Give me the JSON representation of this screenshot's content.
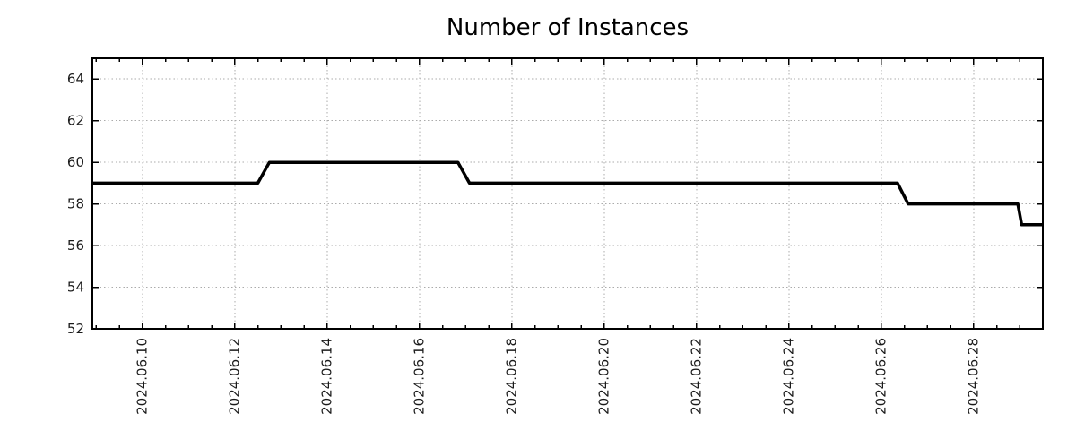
{
  "figure": {
    "title": "Number of Instances"
  },
  "chart_data": {
    "type": "line",
    "subtype": "step",
    "title": "Number of Instances",
    "xlabel": "",
    "ylabel": "",
    "legend": "none",
    "grid": "dotted-major",
    "x_axis": {
      "range": [
        "2024-06-08 22:00",
        "2024-06-29 12:00"
      ],
      "major_ticks": [
        "2024-06-10",
        "2024-06-12",
        "2024-06-14",
        "2024-06-16",
        "2024-06-18",
        "2024-06-20",
        "2024-06-22",
        "2024-06-24",
        "2024-06-26",
        "2024-06-28"
      ],
      "tick_labels": [
        "2024.06.10",
        "2024.06.12",
        "2024.06.14",
        "2024.06.16",
        "2024.06.18",
        "2024.06.20",
        "2024.06.22",
        "2024.06.24",
        "2024.06.26",
        "2024.06.28"
      ],
      "minor_tick_interval_days": 0.5,
      "tick_label_rotation_deg": 90
    },
    "y_axis": {
      "range": [
        52,
        65
      ],
      "ticks": [
        52,
        54,
        56,
        58,
        60,
        62,
        64
      ]
    },
    "series": [
      {
        "name": "instances",
        "color": "#000000",
        "points": [
          [
            "2024-06-08 22:00",
            59
          ],
          [
            "2024-06-12 12:00",
            59
          ],
          [
            "2024-06-12 18:00",
            60
          ],
          [
            "2024-06-16 20:00",
            60
          ],
          [
            "2024-06-17 02:00",
            59
          ],
          [
            "2024-06-26 08:30",
            59
          ],
          [
            "2024-06-26 14:00",
            58
          ],
          [
            "2024-06-28 23:00",
            58
          ],
          [
            "2024-06-29 01:00",
            57
          ],
          [
            "2024-06-29 12:00",
            57
          ]
        ]
      }
    ],
    "colors": {
      "line": "#000000",
      "grid": "#ababab",
      "text": "#1a1a1a",
      "border": "#000000",
      "background": "#ffffff"
    }
  }
}
